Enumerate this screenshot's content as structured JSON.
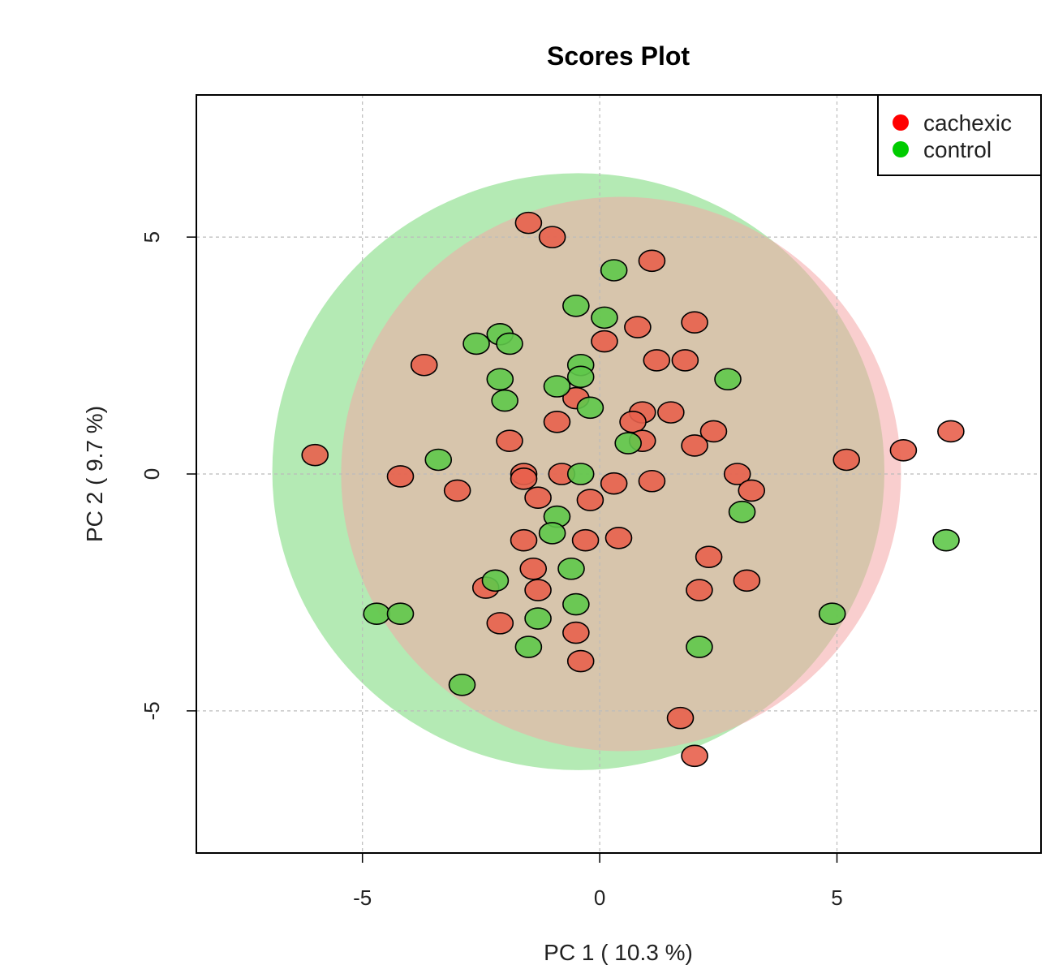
{
  "chart_data": {
    "type": "scatter",
    "title": "Scores Plot",
    "xlabel": "PC 1 ( 10.3 %)",
    "ylabel": "PC 2 ( 9.7 %)",
    "xlim": [
      -8.5,
      9.3
    ],
    "ylim": [
      -8.0,
      8.0
    ],
    "xticks": [
      -5,
      0,
      5
    ],
    "yticks": [
      -5,
      0,
      5
    ],
    "grid": true,
    "legend_position": "top-right",
    "series": [
      {
        "name": "cachexic",
        "color": "#e8604c",
        "legend_color": "#ff0000",
        "ellipse": {
          "cx": 0.45,
          "cy": 0.0,
          "rx": 5.9,
          "ry": 5.85,
          "color": "#f4a5a5"
        },
        "points": [
          [
            -1.5,
            5.3
          ],
          [
            -1.0,
            5.0
          ],
          [
            1.1,
            4.5
          ],
          [
            0.8,
            3.1
          ],
          [
            2.0,
            3.2
          ],
          [
            0.1,
            2.8
          ],
          [
            1.2,
            2.4
          ],
          [
            1.8,
            2.4
          ],
          [
            -3.7,
            2.3
          ],
          [
            -0.5,
            1.6
          ],
          [
            0.9,
            1.3
          ],
          [
            0.7,
            1.1
          ],
          [
            1.5,
            1.3
          ],
          [
            -0.9,
            1.1
          ],
          [
            2.4,
            0.9
          ],
          [
            -1.9,
            0.7
          ],
          [
            0.9,
            0.7
          ],
          [
            2.0,
            0.6
          ],
          [
            5.2,
            0.3
          ],
          [
            6.4,
            0.5
          ],
          [
            7.4,
            0.9
          ],
          [
            -6.0,
            0.4
          ],
          [
            -4.2,
            -0.05
          ],
          [
            -1.6,
            0.0
          ],
          [
            -0.8,
            0.0
          ],
          [
            -1.6,
            -0.1
          ],
          [
            -3.0,
            -0.35
          ],
          [
            -1.3,
            -0.5
          ],
          [
            -0.2,
            -0.55
          ],
          [
            0.3,
            -0.2
          ],
          [
            1.1,
            -0.15
          ],
          [
            2.9,
            0.0
          ],
          [
            3.2,
            -0.35
          ],
          [
            -1.6,
            -1.4
          ],
          [
            -0.3,
            -1.4
          ],
          [
            0.4,
            -1.35
          ],
          [
            -1.4,
            -2.0
          ],
          [
            2.3,
            -1.75
          ],
          [
            -2.4,
            -2.4
          ],
          [
            -1.3,
            -2.45
          ],
          [
            2.1,
            -2.45
          ],
          [
            3.1,
            -2.25
          ],
          [
            -2.1,
            -3.15
          ],
          [
            -0.5,
            -3.35
          ],
          [
            -0.4,
            -3.95
          ],
          [
            1.7,
            -5.15
          ],
          [
            2.0,
            -5.95
          ]
        ]
      },
      {
        "name": "control",
        "color": "#5fc84a",
        "legend_color": "#00cc00",
        "ellipse": {
          "cx": -0.45,
          "cy": 0.05,
          "rx": 6.45,
          "ry": 6.3,
          "color": "#9be39b"
        },
        "points": [
          [
            0.3,
            4.3
          ],
          [
            -0.5,
            3.55
          ],
          [
            0.1,
            3.3
          ],
          [
            -2.6,
            2.75
          ],
          [
            -2.1,
            2.95
          ],
          [
            -1.9,
            2.75
          ],
          [
            -0.4,
            2.3
          ],
          [
            -0.4,
            2.05
          ],
          [
            -2.1,
            2.0
          ],
          [
            -0.9,
            1.85
          ],
          [
            2.7,
            2.0
          ],
          [
            -2.0,
            1.55
          ],
          [
            -0.2,
            1.4
          ],
          [
            0.6,
            0.65
          ],
          [
            -3.4,
            0.3
          ],
          [
            -0.4,
            0.0
          ],
          [
            3.0,
            -0.8
          ],
          [
            -0.9,
            -0.9
          ],
          [
            -1.0,
            -1.25
          ],
          [
            7.3,
            -1.4
          ],
          [
            -0.6,
            -2.0
          ],
          [
            -2.2,
            -2.25
          ],
          [
            -4.7,
            -2.95
          ],
          [
            -4.2,
            -2.95
          ],
          [
            -0.5,
            -2.75
          ],
          [
            -1.3,
            -3.05
          ],
          [
            4.9,
            -2.95
          ],
          [
            -1.5,
            -3.65
          ],
          [
            2.1,
            -3.65
          ],
          [
            -2.9,
            -4.45
          ]
        ]
      }
    ]
  }
}
